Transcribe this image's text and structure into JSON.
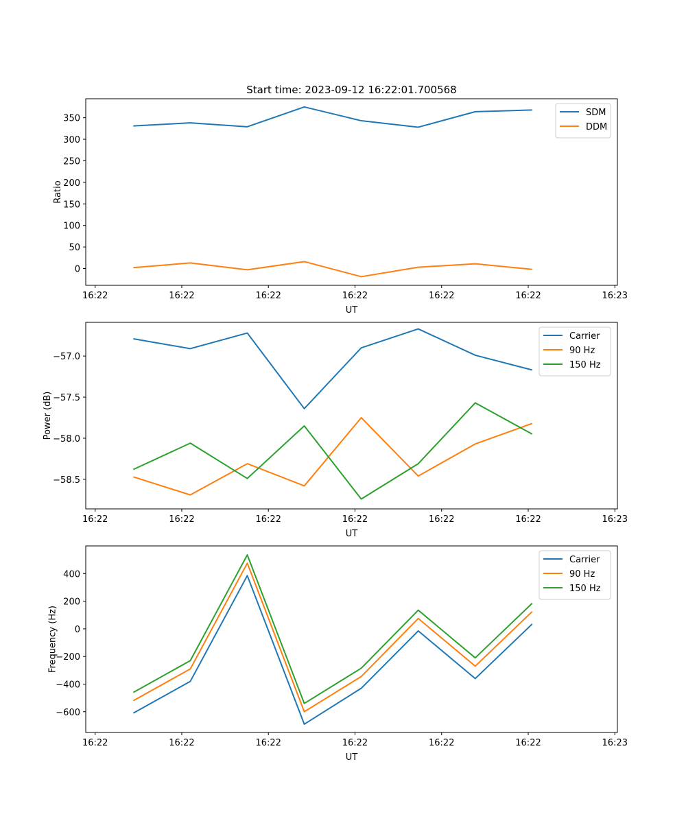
{
  "title": "Start time: 2023-09-12 16:22:01.700568",
  "chart_data": [
    {
      "type": "line",
      "xlabel": "UT",
      "ylabel": "Ratio",
      "x": [
        1,
        2,
        3,
        4,
        5,
        6,
        7,
        8
      ],
      "xlim": [
        0.165,
        9.495
      ],
      "xticks": [
        0.33,
        1.85,
        3.37,
        4.89,
        6.41,
        7.93,
        9.45
      ],
      "xticklabels": [
        "16:22",
        "16:22",
        "16:22",
        "16:22",
        "16:22",
        "16:22",
        "16:23"
      ],
      "ylim": [
        -39,
        394
      ],
      "yticks": [
        0,
        50,
        100,
        150,
        200,
        250,
        300,
        350
      ],
      "yticklabels": [
        "0",
        "50",
        "100",
        "150",
        "200",
        "250",
        "300",
        "350"
      ],
      "legend_position": "top-right",
      "series": [
        {
          "name": "SDM",
          "color": "#1f77b4",
          "values": [
            331,
            338,
            329,
            375,
            343,
            328,
            364,
            368
          ]
        },
        {
          "name": "DDM",
          "color": "#ff7f0e",
          "values": [
            2,
            13,
            -3,
            16,
            -19,
            3,
            11,
            -2
          ]
        }
      ]
    },
    {
      "type": "line",
      "xlabel": "UT",
      "ylabel": "Power (dB)",
      "x": [
        1,
        2,
        3,
        4,
        5,
        6,
        7,
        8
      ],
      "xlim": [
        0.165,
        9.495
      ],
      "xticks": [
        0.33,
        1.85,
        3.37,
        4.89,
        6.41,
        7.93,
        9.45
      ],
      "xticklabels": [
        "16:22",
        "16:22",
        "16:22",
        "16:22",
        "16:22",
        "16:22",
        "16:23"
      ],
      "ylim": [
        -58.86,
        -56.59
      ],
      "yticks": [
        -58.5,
        -58.0,
        -57.5,
        -57.0
      ],
      "yticklabels": [
        "−58.5",
        "−58.0",
        "−57.5",
        "−57.0"
      ],
      "legend_position": "top-right",
      "series": [
        {
          "name": "Carrier",
          "color": "#1f77b4",
          "values": [
            -56.79,
            -56.91,
            -56.72,
            -57.64,
            -56.9,
            -56.67,
            -56.99,
            -57.17
          ]
        },
        {
          "name": "90 Hz",
          "color": "#ff7f0e",
          "values": [
            -58.47,
            -58.69,
            -58.31,
            -58.58,
            -57.75,
            -58.46,
            -58.07,
            -57.82
          ]
        },
        {
          "name": "150 Hz",
          "color": "#2ca02c",
          "values": [
            -58.38,
            -58.06,
            -58.49,
            -57.85,
            -58.74,
            -58.31,
            -57.57,
            -57.95
          ]
        }
      ]
    },
    {
      "type": "line",
      "xlabel": "UT",
      "ylabel": "Frequency (Hz)",
      "x": [
        1,
        2,
        3,
        4,
        5,
        6,
        7,
        8
      ],
      "xlim": [
        0.165,
        9.495
      ],
      "xticks": [
        0.33,
        1.85,
        3.37,
        4.89,
        6.41,
        7.93,
        9.45
      ],
      "xticklabels": [
        "16:22",
        "16:22",
        "16:22",
        "16:22",
        "16:22",
        "16:22",
        "16:23"
      ],
      "ylim": [
        -750,
        600
      ],
      "yticks": [
        -600,
        -400,
        -200,
        0,
        200,
        400
      ],
      "yticklabels": [
        "−600",
        "−400",
        "−200",
        "0",
        "200",
        "400"
      ],
      "legend_position": "top-right",
      "series": [
        {
          "name": "Carrier",
          "color": "#1f77b4",
          "values": [
            -610,
            -380,
            385,
            -690,
            -430,
            -15,
            -360,
            35
          ]
        },
        {
          "name": "90 Hz",
          "color": "#ff7f0e",
          "values": [
            -520,
            -290,
            475,
            -600,
            -345,
            75,
            -270,
            125
          ]
        },
        {
          "name": "150 Hz",
          "color": "#2ca02c",
          "values": [
            -460,
            -230,
            535,
            -540,
            -285,
            135,
            -210,
            185
          ]
        }
      ]
    }
  ]
}
